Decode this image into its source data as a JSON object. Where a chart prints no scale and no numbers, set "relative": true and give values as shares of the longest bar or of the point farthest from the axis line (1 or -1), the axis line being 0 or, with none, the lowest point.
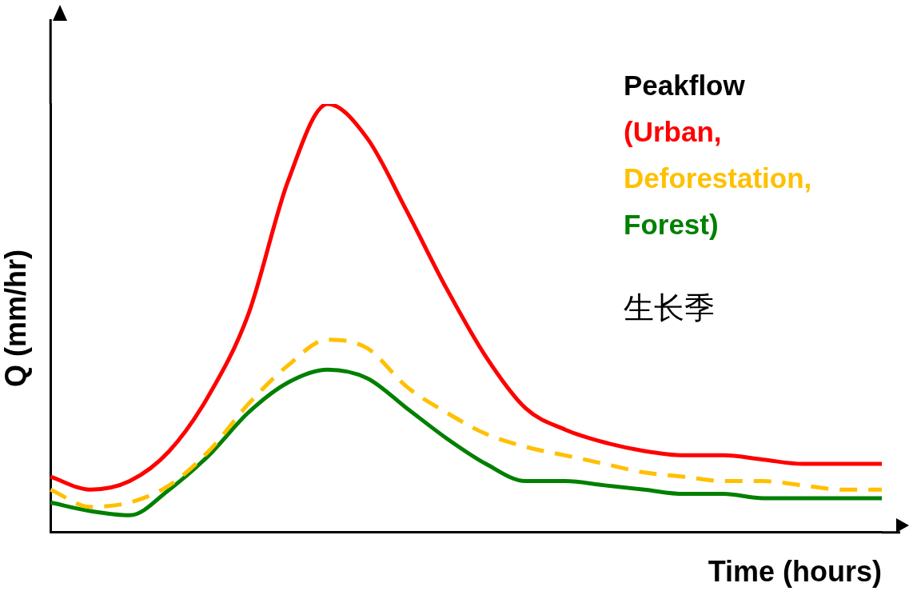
{
  "chart_data": {
    "type": "line",
    "relative": true,
    "xlabel": "Time (hours)",
    "ylabel": "Q (mm/hr)",
    "legend_title": "Peakflow",
    "legend": "top right",
    "marker": "none",
    "grid": false,
    "annotations": [
      "生长季"
    ],
    "categories": [
      null,
      null,
      null,
      null,
      null,
      null,
      null,
      null,
      null,
      null,
      null,
      null,
      null,
      null,
      null,
      null,
      null,
      null,
      null,
      null,
      null,
      null
    ],
    "series": [
      {
        "name": "(Urban,",
        "color": "#ff0000",
        "line_style": "solid",
        "values": [
          0.13,
          0.1,
          0.12,
          0.19,
          0.32,
          0.51,
          0.82,
          1.0,
          0.92,
          0.75,
          0.57,
          0.41,
          0.29,
          0.24,
          0.21,
          0.19,
          0.18,
          0.18,
          0.17,
          0.16,
          0.16,
          0.16
        ]
      },
      {
        "name": "Deforestation,",
        "color": "#ffc000",
        "line_style": "dashed",
        "values": [
          0.1,
          0.06,
          0.07,
          0.11,
          0.19,
          0.3,
          0.39,
          0.45,
          0.43,
          0.34,
          0.28,
          0.23,
          0.2,
          0.18,
          0.16,
          0.14,
          0.13,
          0.12,
          0.12,
          0.11,
          0.1,
          0.1
        ]
      },
      {
        "name": "Forest)",
        "color": "#008000",
        "line_style": "solid",
        "values": [
          0.07,
          0.05,
          0.04,
          0.1,
          0.18,
          0.28,
          0.35,
          0.38,
          0.36,
          0.29,
          0.22,
          0.16,
          0.12,
          0.12,
          0.11,
          0.1,
          0.09,
          0.09,
          0.08,
          0.08,
          0.08,
          0.08
        ]
      }
    ]
  }
}
